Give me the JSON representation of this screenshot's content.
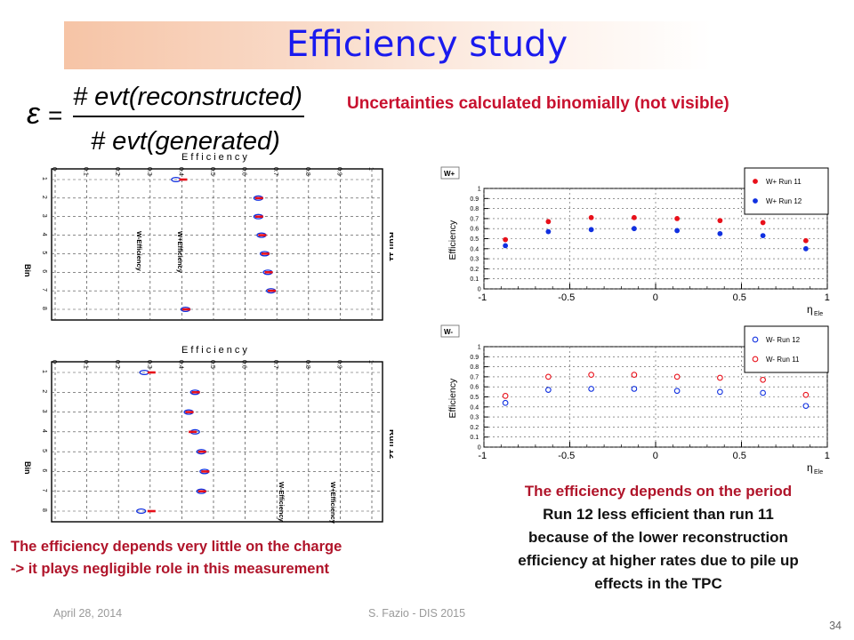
{
  "slide": {
    "title": "Efficiency study",
    "uncertainty_note": "Uncertainties calculated binomially (not visible)",
    "charge_note_line1": "The efficiency depends very little on the charge",
    "charge_note_line2": "-> it plays negligible role in this measurement",
    "period_note_line1": "The efficiency depends on the period",
    "period_note_line2": "Run 12 less efficient than run 11",
    "period_note_line3": "because of the lower reconstruction",
    "period_note_line4": "efficiency at higher rates due to pile up",
    "period_note_line5": "effects in the TPC",
    "footer_date": "April 28, 2014",
    "footer_author": "S. Fazio - DIS 2015",
    "page_number": "34"
  },
  "formula": {
    "epsilon": "ε",
    "equals": "=",
    "numerator": "# evt(reconstructed)",
    "denominator": "# evt(generated)"
  },
  "colors": {
    "title": "#1a1aee",
    "red_text": "#c8102e",
    "run11": "#e8101a",
    "run12": "#1030e0",
    "band_start": "#f6c4a6"
  },
  "chart_data": [
    {
      "type": "scatter",
      "id": "bin-efficiency-run1",
      "orientation": "horizontal",
      "xlabel": "Efficiency",
      "ylabel": "Bin",
      "right_label": "Run 11",
      "xlim": [
        0,
        1
      ],
      "x_ticks": [
        "0",
        "0.1",
        "0.2",
        "0.3",
        "0.4",
        "0.5",
        "0.6",
        "0.7",
        "0.8",
        "0.9",
        "1"
      ],
      "bins": [
        "1",
        "2",
        "3",
        "4",
        "5",
        "6",
        "7",
        "8"
      ],
      "labels_inside": [
        "W-Efficiency",
        "W+Efficiency"
      ],
      "series": [
        {
          "name": "W-Efficiency",
          "marker": "open",
          "values": [
            0.39,
            0.65,
            0.65,
            0.66,
            0.67,
            0.68,
            0.69,
            0.42
          ]
        },
        {
          "name": "W+Efficiency",
          "marker": "filled",
          "values": [
            0.4,
            0.64,
            0.64,
            0.65,
            0.66,
            0.67,
            0.68,
            0.41
          ]
        }
      ],
      "grid": true
    },
    {
      "type": "scatter",
      "id": "bin-efficiency-run2",
      "orientation": "horizontal",
      "xlabel": "Efficiency",
      "ylabel": "Bin",
      "right_label": "Run 12",
      "xlim": [
        0,
        1
      ],
      "x_ticks": [
        "0",
        "0.1",
        "0.2",
        "0.3",
        "0.4",
        "0.5",
        "0.6",
        "0.7",
        "0.8",
        "0.9",
        "1"
      ],
      "bins": [
        "1",
        "2",
        "3",
        "4",
        "5",
        "6",
        "7",
        "8"
      ],
      "labels_inside": [
        "W-Efficiency",
        "W+Efficiency"
      ],
      "series": [
        {
          "name": "W-Efficiency",
          "marker": "open",
          "values": [
            0.29,
            0.45,
            0.43,
            0.45,
            0.47,
            0.48,
            0.47,
            0.28
          ]
        },
        {
          "name": "W+Efficiency",
          "marker": "filled",
          "values": [
            0.3,
            0.44,
            0.42,
            0.43,
            0.46,
            0.47,
            0.46,
            0.3
          ]
        }
      ],
      "grid": true
    },
    {
      "type": "scatter",
      "id": "eta-efficiency-wplus",
      "tag": "W+",
      "xlabel": "ηEle",
      "ylabel": "Efficiency",
      "xlim": [
        -1,
        1
      ],
      "ylim": [
        0,
        1
      ],
      "x_ticks": [
        "-1",
        "-0.5",
        "0",
        "0.5",
        "1"
      ],
      "y_ticks": [
        "0",
        "0.1",
        "0.2",
        "0.3",
        "0.4",
        "0.5",
        "0.6",
        "0.7",
        "0.8",
        "0.9",
        "1"
      ],
      "legend_position": "top-right",
      "x": [
        -0.875,
        -0.625,
        -0.375,
        -0.125,
        0.125,
        0.375,
        0.625,
        0.875
      ],
      "series": [
        {
          "name": "W+ Run 11",
          "marker": "filled",
          "color": "#e8101a",
          "values": [
            0.49,
            0.67,
            0.71,
            0.71,
            0.7,
            0.68,
            0.66,
            0.48
          ]
        },
        {
          "name": "W+ Run 12",
          "marker": "filled",
          "color": "#1030e0",
          "values": [
            0.43,
            0.57,
            0.59,
            0.6,
            0.58,
            0.55,
            0.53,
            0.4
          ]
        }
      ],
      "grid": true
    },
    {
      "type": "scatter",
      "id": "eta-efficiency-wminus",
      "tag": "W-",
      "xlabel": "ηEle",
      "ylabel": "Efficiency",
      "xlim": [
        -1,
        1
      ],
      "ylim": [
        0,
        1
      ],
      "x_ticks": [
        "-1",
        "-0.5",
        "0",
        "0.5",
        "1"
      ],
      "y_ticks": [
        "0",
        "0.1",
        "0.2",
        "0.3",
        "0.4",
        "0.5",
        "0.6",
        "0.7",
        "0.8",
        "0.9",
        "1"
      ],
      "legend_position": "top-right",
      "x": [
        -0.875,
        -0.625,
        -0.375,
        -0.125,
        0.125,
        0.375,
        0.625,
        0.875
      ],
      "series": [
        {
          "name": "W- Run 12",
          "marker": "open",
          "color": "#1030e0",
          "values": [
            0.44,
            0.57,
            0.58,
            0.58,
            0.56,
            0.55,
            0.54,
            0.41
          ]
        },
        {
          "name": "W- Run 11",
          "marker": "open",
          "color": "#e8101a",
          "values": [
            0.51,
            0.7,
            0.72,
            0.72,
            0.7,
            0.69,
            0.67,
            0.52
          ]
        }
      ],
      "grid": true
    }
  ]
}
